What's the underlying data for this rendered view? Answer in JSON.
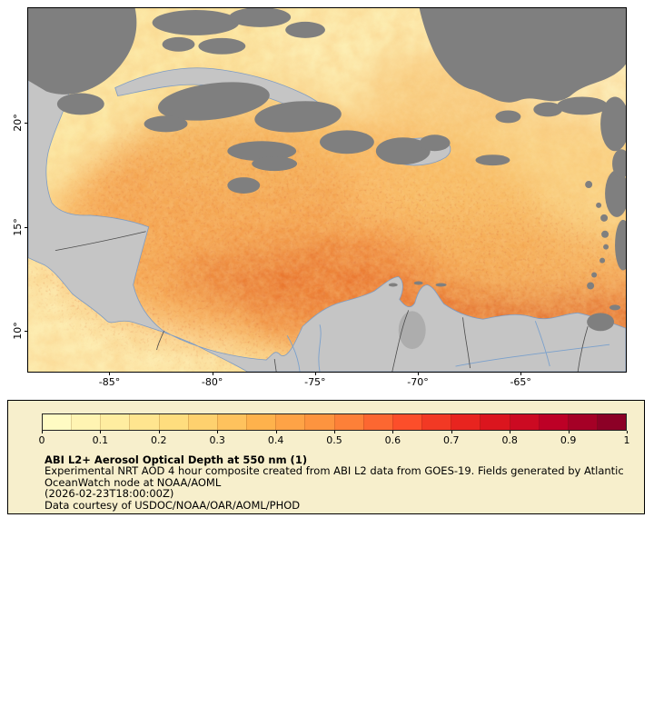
{
  "map": {
    "x_ticks": [
      {
        "label": "-85°",
        "pct": 13.6
      },
      {
        "label": "-80°",
        "pct": 30.8
      },
      {
        "label": "-75°",
        "pct": 48.0
      },
      {
        "label": "-70°",
        "pct": 65.2
      },
      {
        "label": "-65°",
        "pct": 82.4
      }
    ],
    "y_ticks": [
      {
        "label": "20°",
        "pct": 31.6
      },
      {
        "label": "15°",
        "pct": 60.2
      },
      {
        "label": "10°",
        "pct": 88.8
      }
    ]
  },
  "legend": {
    "title": "ABI L2+ Aerosol Optical Depth at 550 nm (1)",
    "description_lines": [
      "Experimental NRT AOD 4 hour composite created from ABI L2 data from GOES-19. Fields generated by Atlantic",
      "OceanWatch node at NOAA/AOML",
      "(2026-02-23T18:00:00Z)",
      "Data courtesy of USDOC/NOAA/OAR/AOML/PHOD"
    ],
    "background_color": "#f7efcc",
    "colorbar": {
      "min": 0,
      "max": 1,
      "segments": 20,
      "tick_labels": [
        "0",
        "0.1",
        "0.2",
        "0.3",
        "0.4",
        "0.5",
        "0.6",
        "0.7",
        "0.8",
        "0.9",
        "1"
      ],
      "anchor_colors": [
        "#ffffcc",
        "#ffeda0",
        "#fed976",
        "#feb24c",
        "#fd8d3c",
        "#fc4e2a",
        "#e31a1c",
        "#bd0026",
        "#800026"
      ]
    }
  },
  "chart_data": {
    "type": "heatmap",
    "title": "ABI L2+ Aerosol Optical Depth at 550 nm (1)",
    "x_axis": {
      "tick_values": [
        -85,
        -80,
        -75,
        -70,
        -65
      ],
      "unit": "degrees longitude"
    },
    "y_axis": {
      "tick_values": [
        20,
        15,
        10
      ],
      "unit": "degrees latitude"
    },
    "value_range": [
      0,
      1
    ],
    "colorbar_tick_values": [
      0,
      0.1,
      0.2,
      0.3,
      0.4,
      0.5,
      0.6,
      0.7,
      0.8,
      0.9,
      1
    ],
    "colormap_anchor_colors": [
      "#ffffcc",
      "#ffeda0",
      "#fed976",
      "#feb24c",
      "#fd8d3c",
      "#fc4e2a",
      "#e31a1c",
      "#bd0026",
      "#800026"
    ],
    "no_data_color": "#7f7f7f",
    "land_color": "#c5c5c5"
  }
}
